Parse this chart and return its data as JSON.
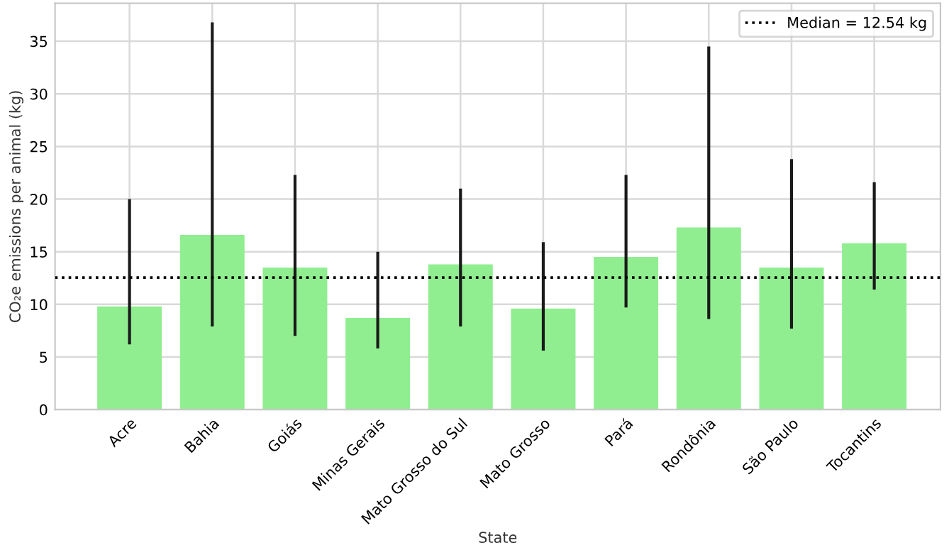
{
  "chart_data": {
    "type": "bar",
    "xlabel": "State",
    "ylabel": "CO₂e emissions per animal (kg)",
    "categories": [
      "Acre",
      "Bahia",
      "Goiás",
      "Minas Gerais",
      "Mato Grosso do Sul",
      "Mato Grosso",
      "Pará",
      "Rondônia",
      "São Paulo",
      "Tocantins"
    ],
    "values": [
      9.8,
      16.6,
      13.5,
      8.7,
      13.8,
      9.6,
      14.5,
      17.3,
      13.5,
      15.8
    ],
    "errors": [
      [
        6.2,
        20.0
      ],
      [
        7.9,
        36.8
      ],
      [
        7.0,
        22.3
      ],
      [
        5.8,
        15.0
      ],
      [
        7.9,
        21.0
      ],
      [
        5.6,
        15.9
      ],
      [
        9.7,
        22.3
      ],
      [
        8.6,
        34.5
      ],
      [
        7.7,
        23.8
      ],
      [
        11.4,
        21.6
      ]
    ],
    "color": "#90ee90",
    "ylim": [
      0,
      38.6
    ],
    "yticks": [
      0,
      5,
      10,
      15,
      20,
      25,
      30,
      35
    ],
    "grid": true,
    "legend": "top right",
    "ref_lines": [
      {
        "axis": "y",
        "value": 12.54,
        "label": "Median = 12.54 kg",
        "color": "#000000",
        "line_style": "dotted"
      }
    ]
  }
}
